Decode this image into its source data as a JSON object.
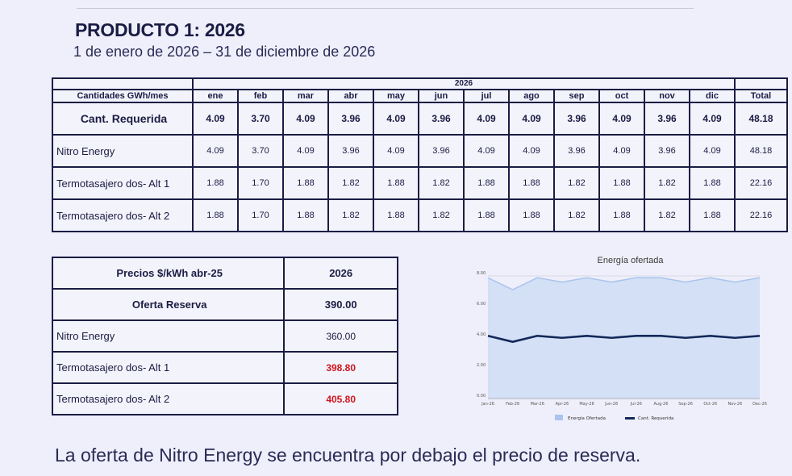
{
  "product_title": "PRODUCTO 1: 2026",
  "date_range": "1 de enero de 2026  – 31 de diciembre de 2026",
  "table_quantities": {
    "year_label": "2026",
    "header_label": "Cantidades GWh/mes",
    "months": [
      "ene",
      "feb",
      "mar",
      "abr",
      "may",
      "jun",
      "jul",
      "ago",
      "sep",
      "oct",
      "nov",
      "dic"
    ],
    "total_label": "Total",
    "rows": [
      {
        "label": "Cant. Requerida",
        "values": [
          "4.09",
          "3.70",
          "4.09",
          "3.96",
          "4.09",
          "3.96",
          "4.09",
          "4.09",
          "3.96",
          "4.09",
          "3.96",
          "4.09"
        ],
        "total": "48.18"
      },
      {
        "label": "Nitro Energy",
        "values": [
          "4.09",
          "3.70",
          "4.09",
          "3.96",
          "4.09",
          "3.96",
          "4.09",
          "4.09",
          "3.96",
          "4.09",
          "3.96",
          "4.09"
        ],
        "total": "48.18"
      },
      {
        "label": "Termotasajero dos- Alt  1",
        "values": [
          "1.88",
          "1.70",
          "1.88",
          "1.82",
          "1.88",
          "1.82",
          "1.88",
          "1.88",
          "1.82",
          "1.88",
          "1.82",
          "1.88"
        ],
        "total": "22.16"
      },
      {
        "label": "Termotasajero dos- Alt  2",
        "values": [
          "1.88",
          "1.70",
          "1.88",
          "1.82",
          "1.88",
          "1.82",
          "1.88",
          "1.88",
          "1.82",
          "1.88",
          "1.82",
          "1.88"
        ],
        "total": "22.16"
      }
    ]
  },
  "table_prices": {
    "header_label": "Precios $/kWh abr-25",
    "header_year": "2026",
    "rows": [
      {
        "label": "Oferta Reserva",
        "value": "390.00"
      },
      {
        "label": "Nitro Energy",
        "value": "360.00"
      },
      {
        "label": "Termotasajero dos- Alt  1",
        "value": "398.80"
      },
      {
        "label": "Termotasajero dos- Alt  2",
        "value": "405.80"
      }
    ]
  },
  "chart_data": {
    "type": "area",
    "title": "Energía ofertada",
    "x": [
      "Jan-26",
      "Feb-26",
      "Mar-26",
      "Apr-26",
      "May-26",
      "Jun-26",
      "Jul-26",
      "Aug-26",
      "Sep-26",
      "Oct-26",
      "Nov-26",
      "Dec-26"
    ],
    "ylim": [
      0,
      8
    ],
    "yticks": [
      "0.00",
      "2.00",
      "4.00",
      "6.00",
      "8.00"
    ],
    "grid": true,
    "legend_position": "bottom",
    "series": [
      {
        "name": "Energía Ofertada",
        "type": "area",
        "color": "#a9c4ee",
        "values": [
          7.88,
          7.1,
          7.88,
          7.6,
          7.88,
          7.6,
          7.88,
          7.88,
          7.6,
          7.88,
          7.6,
          7.88
        ]
      },
      {
        "name": "Cant. Requerida",
        "type": "line",
        "color": "#13295a",
        "values": [
          4.09,
          3.7,
          4.09,
          3.96,
          4.09,
          3.96,
          4.09,
          4.09,
          3.96,
          4.09,
          3.96,
          4.09
        ]
      }
    ]
  },
  "footer_text": "La oferta de Nitro Energy se encuentra por debajo el precio de reserva."
}
